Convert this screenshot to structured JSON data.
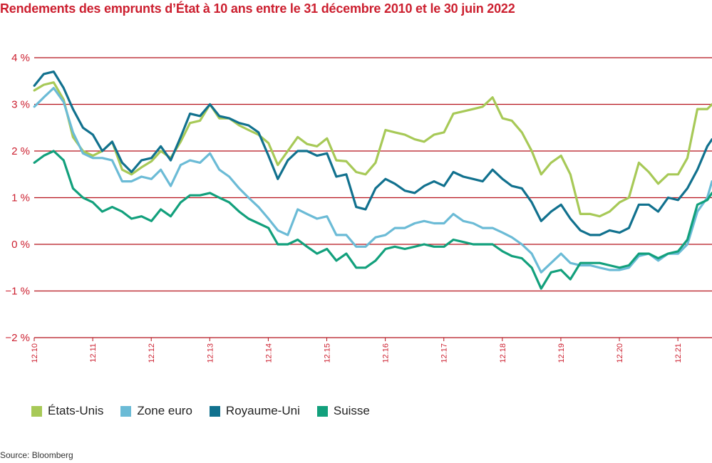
{
  "chart_data": {
    "type": "line",
    "title": "Rendements des emprunts d’État à 10 ans entre le 31 décembre 2010 et le 30 juin 2022",
    "source": "Source: Bloomberg",
    "xlabel": "",
    "ylabel": "",
    "ylim": [
      -2,
      4
    ],
    "xlim": [
      2010.917,
      2022.5
    ],
    "y_ticks": [
      {
        "value": 4,
        "label": "4 %"
      },
      {
        "value": 3,
        "label": "3 %"
      },
      {
        "value": 2,
        "label": "2 %"
      },
      {
        "value": 1,
        "label": "1 %"
      },
      {
        "value": 0,
        "label": "0 %"
      },
      {
        "value": -1,
        "label": "−1 %"
      },
      {
        "value": -2,
        "label": "−2 %"
      }
    ],
    "x_ticks": [
      {
        "value": 2010.917,
        "label": "12.10"
      },
      {
        "value": 2011.917,
        "label": "12.11"
      },
      {
        "value": 2012.917,
        "label": "12.12"
      },
      {
        "value": 2013.917,
        "label": "12.13"
      },
      {
        "value": 2014.917,
        "label": "12.14"
      },
      {
        "value": 2015.917,
        "label": "12.15"
      },
      {
        "value": 2016.917,
        "label": "12.16"
      },
      {
        "value": 2017.917,
        "label": "12.17"
      },
      {
        "value": 2018.917,
        "label": "12.18"
      },
      {
        "value": 2019.917,
        "label": "12.19"
      },
      {
        "value": 2020.917,
        "label": "12.20"
      },
      {
        "value": 2021.917,
        "label": "12.21"
      }
    ],
    "grid": true,
    "legend_position": "bottom-left",
    "colors": {
      "grid": "#b5121b",
      "axis_text": "#cc1f2f"
    },
    "series": [
      {
        "name": "États-Unis",
        "color": "#a7c957",
        "points": [
          [
            2010.92,
            3.3
          ],
          [
            2011.08,
            3.42
          ],
          [
            2011.25,
            3.47
          ],
          [
            2011.42,
            3.1
          ],
          [
            2011.58,
            2.3
          ],
          [
            2011.75,
            2.0
          ],
          [
            2011.92,
            1.9
          ],
          [
            2012.08,
            2.0
          ],
          [
            2012.25,
            2.2
          ],
          [
            2012.42,
            1.6
          ],
          [
            2012.58,
            1.5
          ],
          [
            2012.75,
            1.65
          ],
          [
            2012.92,
            1.78
          ],
          [
            2013.08,
            2.0
          ],
          [
            2013.25,
            1.85
          ],
          [
            2013.42,
            2.2
          ],
          [
            2013.58,
            2.6
          ],
          [
            2013.75,
            2.65
          ],
          [
            2013.92,
            3.0
          ],
          [
            2014.08,
            2.7
          ],
          [
            2014.25,
            2.7
          ],
          [
            2014.42,
            2.55
          ],
          [
            2014.58,
            2.45
          ],
          [
            2014.75,
            2.35
          ],
          [
            2014.92,
            2.17
          ],
          [
            2015.08,
            1.7
          ],
          [
            2015.25,
            2.0
          ],
          [
            2015.42,
            2.3
          ],
          [
            2015.58,
            2.15
          ],
          [
            2015.75,
            2.1
          ],
          [
            2015.92,
            2.27
          ],
          [
            2016.08,
            1.8
          ],
          [
            2016.25,
            1.78
          ],
          [
            2016.42,
            1.55
          ],
          [
            2016.58,
            1.5
          ],
          [
            2016.75,
            1.75
          ],
          [
            2016.92,
            2.45
          ],
          [
            2017.08,
            2.4
          ],
          [
            2017.25,
            2.35
          ],
          [
            2017.42,
            2.25
          ],
          [
            2017.58,
            2.2
          ],
          [
            2017.75,
            2.35
          ],
          [
            2017.92,
            2.4
          ],
          [
            2018.08,
            2.8
          ],
          [
            2018.25,
            2.85
          ],
          [
            2018.42,
            2.9
          ],
          [
            2018.58,
            2.95
          ],
          [
            2018.75,
            3.15
          ],
          [
            2018.92,
            2.7
          ],
          [
            2019.08,
            2.65
          ],
          [
            2019.25,
            2.4
          ],
          [
            2019.42,
            2.0
          ],
          [
            2019.58,
            1.5
          ],
          [
            2019.75,
            1.75
          ],
          [
            2019.92,
            1.9
          ],
          [
            2020.08,
            1.5
          ],
          [
            2020.25,
            0.65
          ],
          [
            2020.42,
            0.65
          ],
          [
            2020.58,
            0.6
          ],
          [
            2020.75,
            0.7
          ],
          [
            2020.92,
            0.9
          ],
          [
            2021.08,
            1.0
          ],
          [
            2021.25,
            1.75
          ],
          [
            2021.42,
            1.55
          ],
          [
            2021.58,
            1.3
          ],
          [
            2021.75,
            1.5
          ],
          [
            2021.92,
            1.5
          ],
          [
            2022.08,
            1.85
          ],
          [
            2022.25,
            2.9
          ],
          [
            2022.42,
            2.9
          ],
          [
            2022.5,
            3.0
          ]
        ]
      },
      {
        "name": "Zone euro",
        "color": "#6bbbd6",
        "points": [
          [
            2010.92,
            2.95
          ],
          [
            2011.08,
            3.15
          ],
          [
            2011.25,
            3.35
          ],
          [
            2011.42,
            3.05
          ],
          [
            2011.58,
            2.4
          ],
          [
            2011.75,
            1.95
          ],
          [
            2011.92,
            1.85
          ],
          [
            2012.08,
            1.85
          ],
          [
            2012.25,
            1.8
          ],
          [
            2012.42,
            1.35
          ],
          [
            2012.58,
            1.35
          ],
          [
            2012.75,
            1.45
          ],
          [
            2012.92,
            1.4
          ],
          [
            2013.08,
            1.6
          ],
          [
            2013.25,
            1.25
          ],
          [
            2013.42,
            1.7
          ],
          [
            2013.58,
            1.8
          ],
          [
            2013.75,
            1.75
          ],
          [
            2013.92,
            1.95
          ],
          [
            2014.08,
            1.6
          ],
          [
            2014.25,
            1.45
          ],
          [
            2014.42,
            1.2
          ],
          [
            2014.58,
            1.0
          ],
          [
            2014.75,
            0.8
          ],
          [
            2014.92,
            0.55
          ],
          [
            2015.08,
            0.3
          ],
          [
            2015.25,
            0.2
          ],
          [
            2015.42,
            0.75
          ],
          [
            2015.58,
            0.65
          ],
          [
            2015.75,
            0.55
          ],
          [
            2015.92,
            0.6
          ],
          [
            2016.08,
            0.2
          ],
          [
            2016.25,
            0.2
          ],
          [
            2016.42,
            -0.05
          ],
          [
            2016.58,
            -0.05
          ],
          [
            2016.75,
            0.15
          ],
          [
            2016.92,
            0.2
          ],
          [
            2017.08,
            0.35
          ],
          [
            2017.25,
            0.35
          ],
          [
            2017.42,
            0.45
          ],
          [
            2017.58,
            0.5
          ],
          [
            2017.75,
            0.45
          ],
          [
            2017.92,
            0.45
          ],
          [
            2018.08,
            0.65
          ],
          [
            2018.25,
            0.5
          ],
          [
            2018.42,
            0.45
          ],
          [
            2018.58,
            0.35
          ],
          [
            2018.75,
            0.35
          ],
          [
            2018.92,
            0.25
          ],
          [
            2019.08,
            0.15
          ],
          [
            2019.25,
            0.0
          ],
          [
            2019.42,
            -0.2
          ],
          [
            2019.58,
            -0.6
          ],
          [
            2019.75,
            -0.4
          ],
          [
            2019.92,
            -0.2
          ],
          [
            2020.08,
            -0.4
          ],
          [
            2020.25,
            -0.45
          ],
          [
            2020.42,
            -0.45
          ],
          [
            2020.58,
            -0.5
          ],
          [
            2020.75,
            -0.55
          ],
          [
            2020.92,
            -0.55
          ],
          [
            2021.08,
            -0.5
          ],
          [
            2021.25,
            -0.25
          ],
          [
            2021.42,
            -0.2
          ],
          [
            2021.58,
            -0.35
          ],
          [
            2021.75,
            -0.2
          ],
          [
            2021.92,
            -0.2
          ],
          [
            2022.08,
            0.0
          ],
          [
            2022.25,
            0.7
          ],
          [
            2022.42,
            1.0
          ],
          [
            2022.5,
            1.35
          ]
        ]
      },
      {
        "name": "Royaume-Uni",
        "color": "#11718e",
        "points": [
          [
            2010.92,
            3.4
          ],
          [
            2011.08,
            3.65
          ],
          [
            2011.25,
            3.7
          ],
          [
            2011.42,
            3.35
          ],
          [
            2011.58,
            2.9
          ],
          [
            2011.75,
            2.5
          ],
          [
            2011.92,
            2.35
          ],
          [
            2012.08,
            2.0
          ],
          [
            2012.25,
            2.2
          ],
          [
            2012.42,
            1.75
          ],
          [
            2012.58,
            1.55
          ],
          [
            2012.75,
            1.8
          ],
          [
            2012.92,
            1.85
          ],
          [
            2013.08,
            2.1
          ],
          [
            2013.25,
            1.8
          ],
          [
            2013.42,
            2.3
          ],
          [
            2013.58,
            2.8
          ],
          [
            2013.75,
            2.75
          ],
          [
            2013.92,
            3.0
          ],
          [
            2014.08,
            2.75
          ],
          [
            2014.25,
            2.7
          ],
          [
            2014.42,
            2.6
          ],
          [
            2014.58,
            2.55
          ],
          [
            2014.75,
            2.4
          ],
          [
            2014.92,
            1.9
          ],
          [
            2015.08,
            1.4
          ],
          [
            2015.25,
            1.8
          ],
          [
            2015.42,
            2.0
          ],
          [
            2015.58,
            2.0
          ],
          [
            2015.75,
            1.9
          ],
          [
            2015.92,
            1.95
          ],
          [
            2016.08,
            1.45
          ],
          [
            2016.25,
            1.5
          ],
          [
            2016.42,
            0.8
          ],
          [
            2016.58,
            0.75
          ],
          [
            2016.75,
            1.2
          ],
          [
            2016.92,
            1.4
          ],
          [
            2017.08,
            1.3
          ],
          [
            2017.25,
            1.15
          ],
          [
            2017.42,
            1.1
          ],
          [
            2017.58,
            1.25
          ],
          [
            2017.75,
            1.35
          ],
          [
            2017.92,
            1.25
          ],
          [
            2018.08,
            1.55
          ],
          [
            2018.25,
            1.45
          ],
          [
            2018.42,
            1.4
          ],
          [
            2018.58,
            1.35
          ],
          [
            2018.75,
            1.6
          ],
          [
            2018.92,
            1.4
          ],
          [
            2019.08,
            1.25
          ],
          [
            2019.25,
            1.2
          ],
          [
            2019.42,
            0.9
          ],
          [
            2019.58,
            0.5
          ],
          [
            2019.75,
            0.7
          ],
          [
            2019.92,
            0.85
          ],
          [
            2020.08,
            0.55
          ],
          [
            2020.25,
            0.3
          ],
          [
            2020.42,
            0.2
          ],
          [
            2020.58,
            0.2
          ],
          [
            2020.75,
            0.3
          ],
          [
            2020.92,
            0.25
          ],
          [
            2021.08,
            0.35
          ],
          [
            2021.25,
            0.85
          ],
          [
            2021.42,
            0.85
          ],
          [
            2021.58,
            0.7
          ],
          [
            2021.75,
            1.0
          ],
          [
            2021.92,
            0.95
          ],
          [
            2022.08,
            1.2
          ],
          [
            2022.25,
            1.6
          ],
          [
            2022.42,
            2.1
          ],
          [
            2022.5,
            2.25
          ]
        ]
      },
      {
        "name": "Suisse",
        "color": "#12a07c",
        "points": [
          [
            2010.92,
            1.75
          ],
          [
            2011.08,
            1.9
          ],
          [
            2011.25,
            2.0
          ],
          [
            2011.42,
            1.8
          ],
          [
            2011.58,
            1.2
          ],
          [
            2011.75,
            1.0
          ],
          [
            2011.92,
            0.9
          ],
          [
            2012.08,
            0.7
          ],
          [
            2012.25,
            0.8
          ],
          [
            2012.42,
            0.7
          ],
          [
            2012.58,
            0.55
          ],
          [
            2012.75,
            0.6
          ],
          [
            2012.92,
            0.5
          ],
          [
            2013.08,
            0.75
          ],
          [
            2013.25,
            0.6
          ],
          [
            2013.42,
            0.9
          ],
          [
            2013.58,
            1.05
          ],
          [
            2013.75,
            1.05
          ],
          [
            2013.92,
            1.1
          ],
          [
            2014.08,
            1.0
          ],
          [
            2014.25,
            0.9
          ],
          [
            2014.42,
            0.7
          ],
          [
            2014.58,
            0.55
          ],
          [
            2014.75,
            0.45
          ],
          [
            2014.92,
            0.35
          ],
          [
            2015.08,
            0.0
          ],
          [
            2015.25,
            0.0
          ],
          [
            2015.42,
            0.1
          ],
          [
            2015.58,
            -0.05
          ],
          [
            2015.75,
            -0.2
          ],
          [
            2015.92,
            -0.1
          ],
          [
            2016.08,
            -0.35
          ],
          [
            2016.25,
            -0.2
          ],
          [
            2016.42,
            -0.5
          ],
          [
            2016.58,
            -0.5
          ],
          [
            2016.75,
            -0.35
          ],
          [
            2016.92,
            -0.1
          ],
          [
            2017.08,
            -0.05
          ],
          [
            2017.25,
            -0.1
          ],
          [
            2017.42,
            -0.05
          ],
          [
            2017.58,
            0.0
          ],
          [
            2017.75,
            -0.05
          ],
          [
            2017.92,
            -0.05
          ],
          [
            2018.08,
            0.1
          ],
          [
            2018.25,
            0.05
          ],
          [
            2018.42,
            0.0
          ],
          [
            2018.58,
            0.0
          ],
          [
            2018.75,
            0.0
          ],
          [
            2018.92,
            -0.15
          ],
          [
            2019.08,
            -0.25
          ],
          [
            2019.25,
            -0.3
          ],
          [
            2019.42,
            -0.5
          ],
          [
            2019.58,
            -0.95
          ],
          [
            2019.75,
            -0.6
          ],
          [
            2019.92,
            -0.55
          ],
          [
            2020.08,
            -0.75
          ],
          [
            2020.25,
            -0.4
          ],
          [
            2020.42,
            -0.4
          ],
          [
            2020.58,
            -0.4
          ],
          [
            2020.75,
            -0.45
          ],
          [
            2020.92,
            -0.5
          ],
          [
            2021.08,
            -0.45
          ],
          [
            2021.25,
            -0.2
          ],
          [
            2021.42,
            -0.2
          ],
          [
            2021.58,
            -0.3
          ],
          [
            2021.75,
            -0.2
          ],
          [
            2021.92,
            -0.15
          ],
          [
            2022.08,
            0.1
          ],
          [
            2022.25,
            0.85
          ],
          [
            2022.42,
            0.95
          ],
          [
            2022.5,
            1.1
          ]
        ]
      }
    ]
  }
}
